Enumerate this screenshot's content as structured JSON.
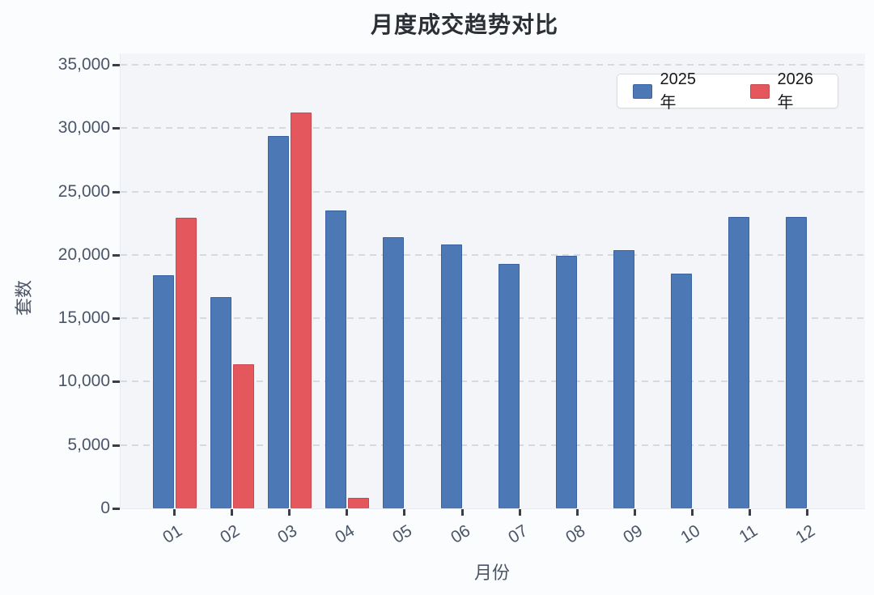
{
  "page": {
    "background": "#fbfcfd"
  },
  "chart_data": {
    "type": "bar",
    "title": "月度成交趋势对比",
    "xlabel": "月份",
    "ylabel": "套数",
    "categories": [
      "01",
      "02",
      "03",
      "04",
      "05",
      "06",
      "07",
      "08",
      "09",
      "10",
      "11",
      "12"
    ],
    "series": [
      {
        "name": "2025年",
        "color": "#4d78b6",
        "border_color": "#3a61a0",
        "values": [
          18400,
          16700,
          29400,
          23500,
          21400,
          20800,
          19300,
          19900,
          20400,
          18500,
          23000,
          23000
        ]
      },
      {
        "name": "2026年",
        "color": "#e4575d",
        "border_color": "#c9474e",
        "values": [
          22900,
          11400,
          31200,
          800,
          null,
          null,
          null,
          null,
          null,
          null,
          null,
          null
        ]
      }
    ],
    "ylim": [
      0,
      35000
    ],
    "ytick_step": 5000,
    "ytick_labels": [
      "0",
      "5,000",
      "10,000",
      "15,000",
      "20,000",
      "25,000",
      "30,000",
      "35,000"
    ],
    "grid": {
      "horizontal": true,
      "style": "dashed",
      "color": "#d6d9de"
    },
    "legend_position": "top-right",
    "plot_background": "#f3f5f9"
  }
}
